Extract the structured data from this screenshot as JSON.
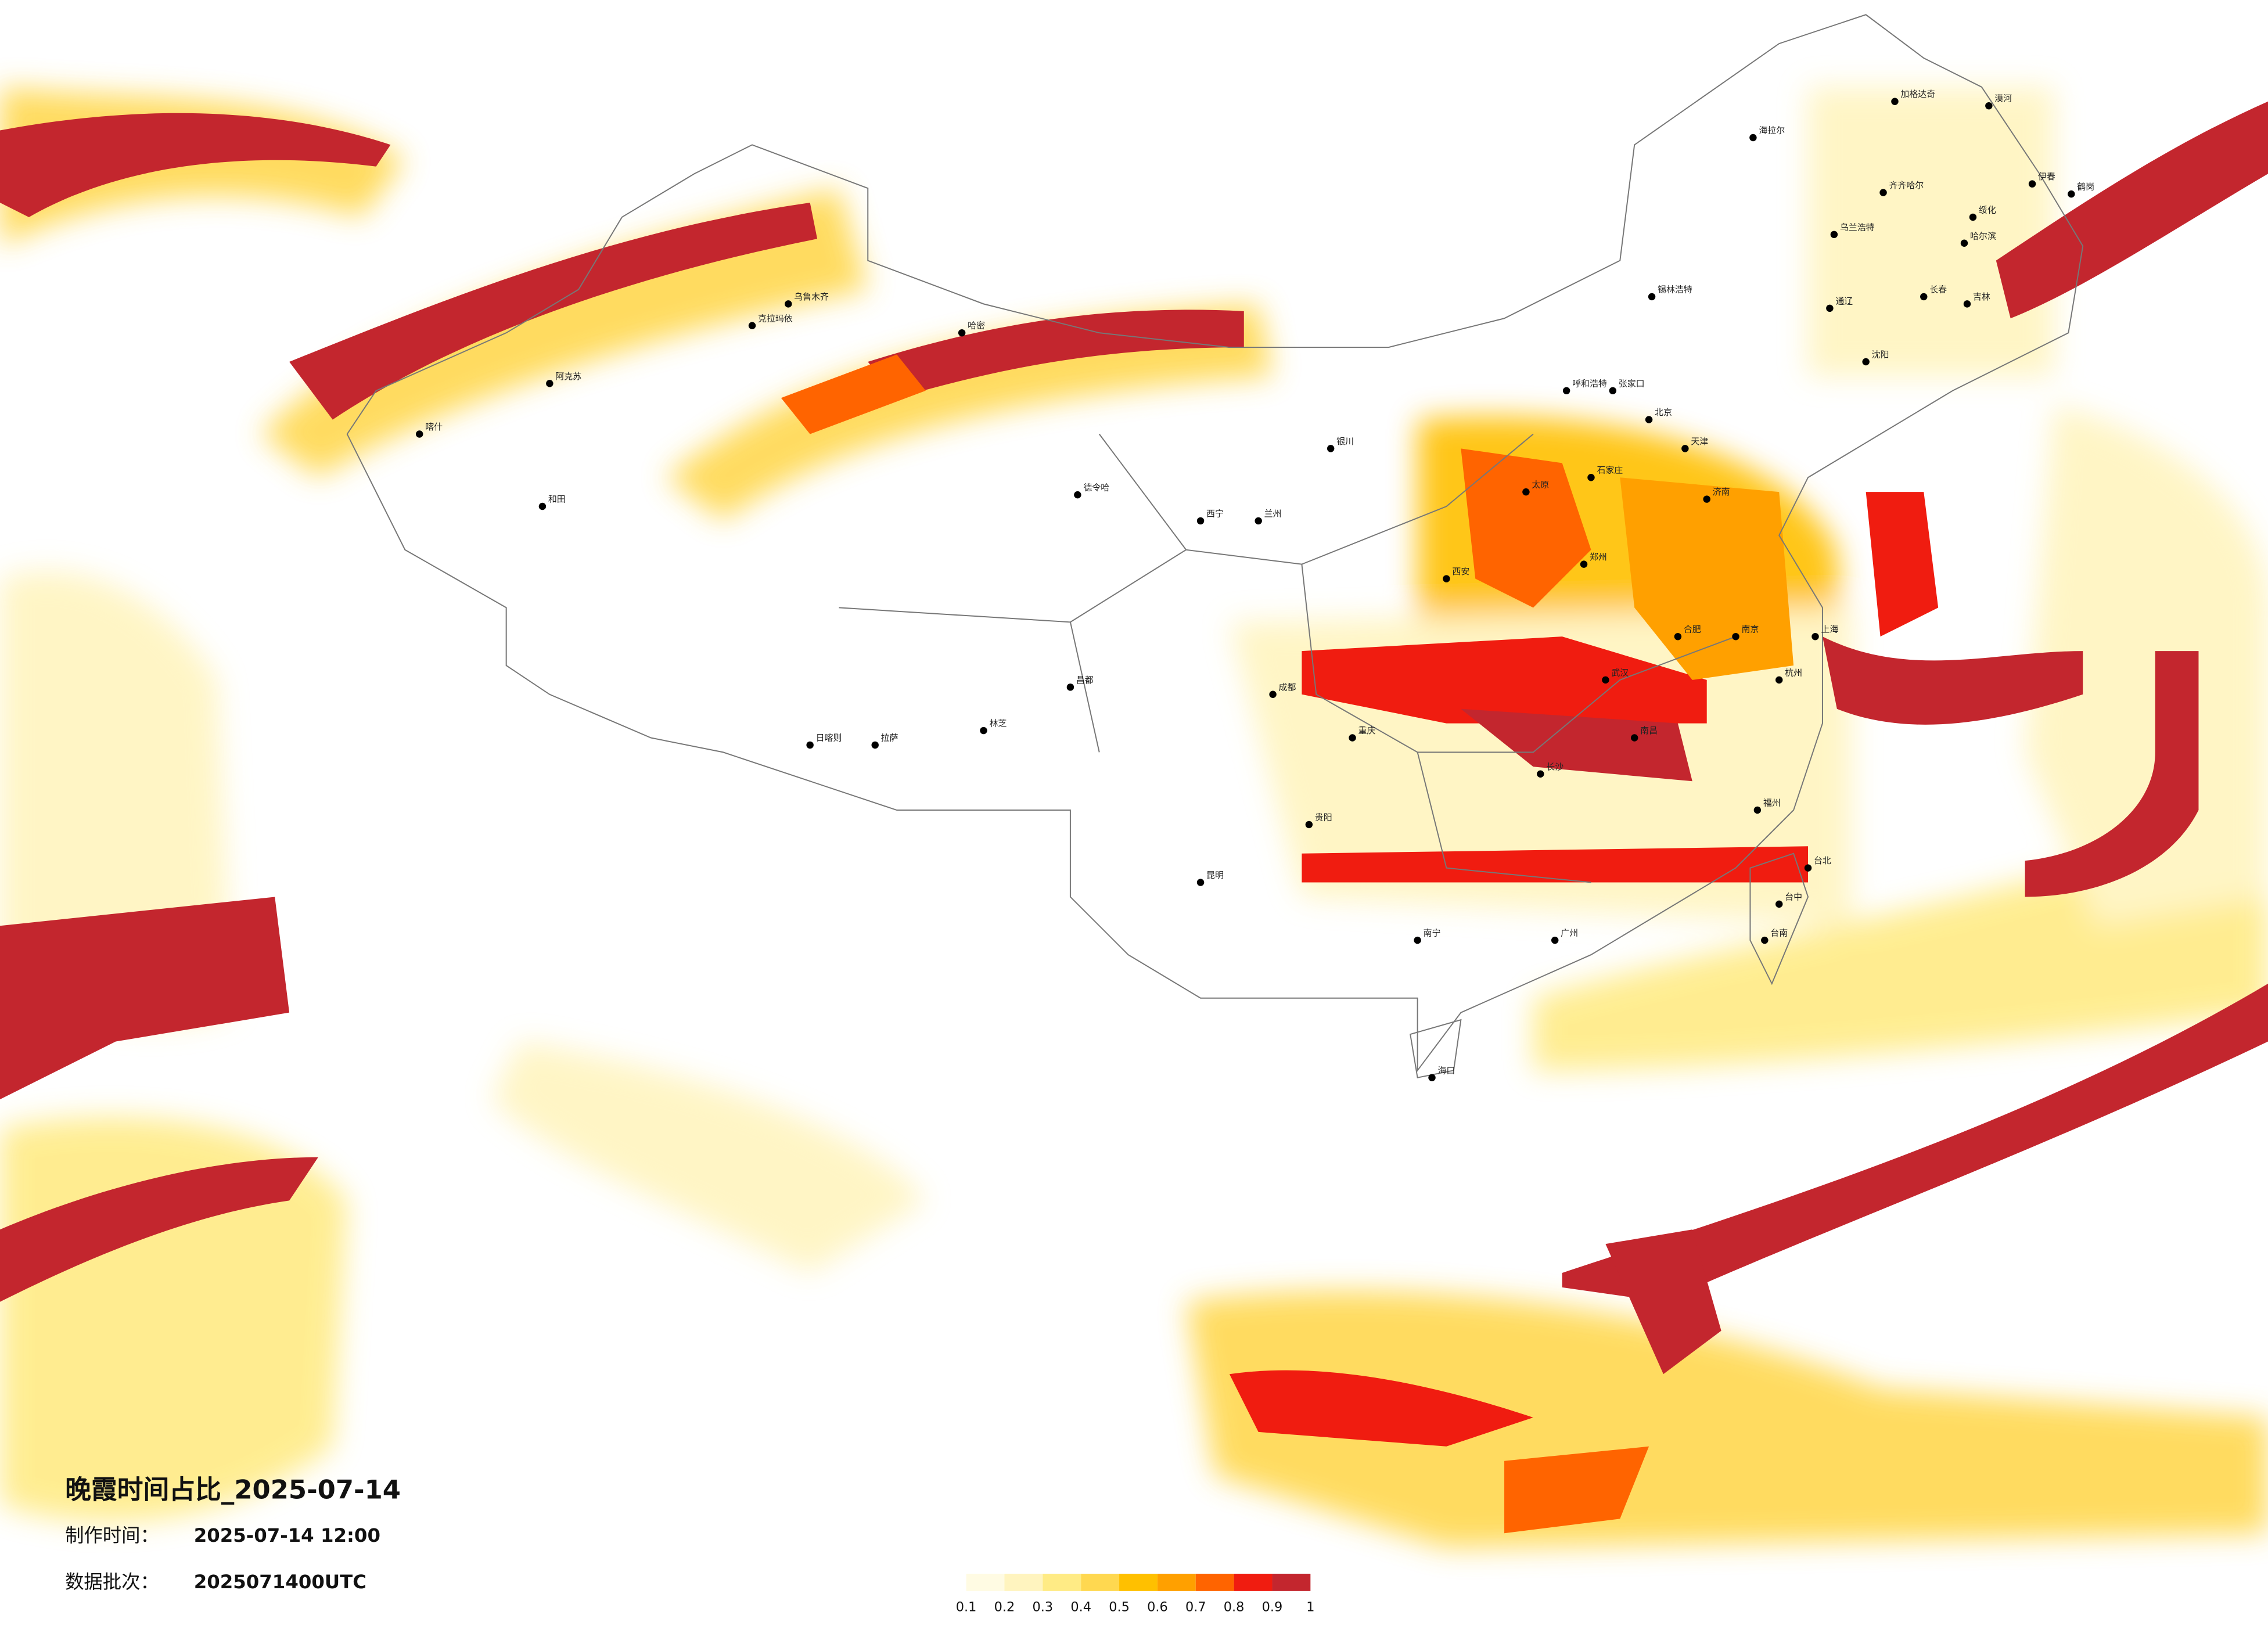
{
  "title": "晚霞时间占比_2025-07-14",
  "made_label": "制作时间：",
  "made_time": "2025-07-14 12:00",
  "batch_label": "数据批次：",
  "batch": "2025071400UTC",
  "legend": {
    "ticks": [
      0.1,
      0.2,
      0.3,
      0.4,
      0.5,
      0.6,
      0.7,
      0.8,
      0.9,
      1
    ],
    "colors": [
      "#fffbe3",
      "#fff4bf",
      "#ffeb85",
      "#ffd850",
      "#ffc000",
      "#ffa000",
      "#ff6400",
      "#f01c10",
      "#c3262e"
    ]
  },
  "cities": [
    "漠河",
    "加格达奇",
    "海拉尔",
    "伊春",
    "鹤岗",
    "齐齐哈尔",
    "绥化",
    "哈尔滨",
    "乌兰浩特",
    "长春",
    "吉林",
    "通辽",
    "锡林浩特",
    "沈阳",
    "呼和浩特",
    "张家口",
    "北京",
    "天津",
    "石家庄",
    "太原",
    "济南",
    "郑州",
    "西安",
    "兰州",
    "西宁",
    "银川",
    "乌鲁木齐",
    "喀什",
    "和田",
    "阿克苏",
    "克拉玛依",
    "哈密",
    "德令哈",
    "拉萨",
    "日喀则",
    "林芝",
    "昌都",
    "成都",
    "重庆",
    "贵阳",
    "昆明",
    "南宁",
    "广州",
    "海口",
    "长沙",
    "武汉",
    "南京",
    "上海",
    "杭州",
    "福州",
    "台北",
    "台中",
    "台南",
    "合肥",
    "南昌"
  ]
}
